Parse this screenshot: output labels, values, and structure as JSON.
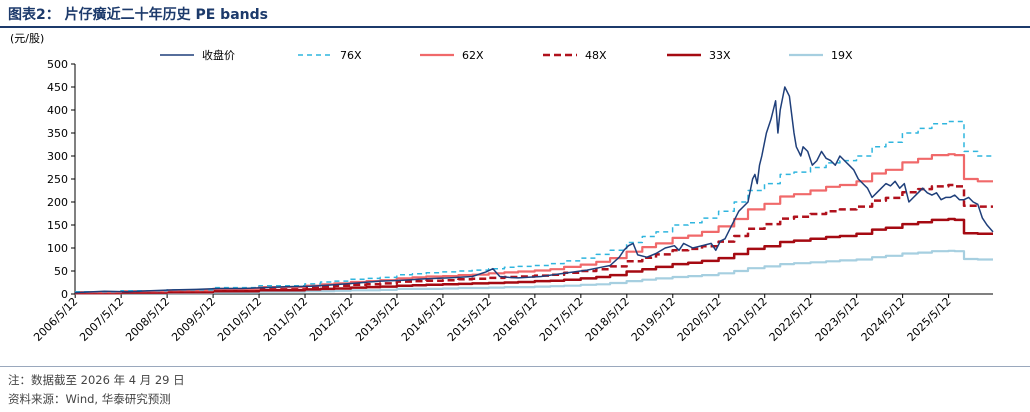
{
  "figure": {
    "title": "图表2：  片仔癀近二十年历史 PE bands",
    "unit_label": "(元/股)",
    "note": "注：数据截至 2026 年 4 月 29 日",
    "source": "资料来源：Wind, 华泰研究预测"
  },
  "colors": {
    "title": "#1c3a6b",
    "price": "#1f3f7a",
    "pe76": "#2fb5de",
    "pe62": "#f0696a",
    "pe48": "#b0111c",
    "pe33": "#a50a12",
    "pe19": "#a6cfe0"
  },
  "chart_data": {
    "type": "line",
    "title": "片仔癀近二十年历史 PE bands",
    "ylabel": "(元/股)",
    "ylim": [
      0,
      500
    ],
    "yticks": [
      0,
      50,
      100,
      150,
      200,
      250,
      300,
      350,
      400,
      450,
      500
    ],
    "xlim": [
      2006.36,
      2026.33
    ],
    "xticks": [
      "2006/5/12",
      "2007/5/12",
      "2008/5/12",
      "2009/5/12",
      "2010/5/12",
      "2011/5/12",
      "2012/5/12",
      "2013/5/12",
      "2014/5/12",
      "2015/5/12",
      "2016/5/12",
      "2017/5/12",
      "2018/5/12",
      "2019/5/12",
      "2020/5/12",
      "2021/5/12",
      "2022/5/12",
      "2023/5/12",
      "2024/5/12",
      "2025/5/12"
    ],
    "grid": false,
    "legend_position": "top",
    "series": [
      {
        "name": "收盘价",
        "key": "price",
        "style": "solid",
        "x": [
          2006.36,
          2007.0,
          2007.5,
          2008.0,
          2008.5,
          2009.0,
          2009.5,
          2010.0,
          2010.5,
          2011.0,
          2011.5,
          2012.0,
          2012.5,
          2013.0,
          2013.5,
          2014.0,
          2014.5,
          2015.0,
          2015.3,
          2015.45,
          2015.6,
          2015.8,
          2016.0,
          2016.5,
          2017.0,
          2017.5,
          2017.8,
          2018.0,
          2018.2,
          2018.3,
          2018.4,
          2018.5,
          2018.6,
          2018.8,
          2019.0,
          2019.2,
          2019.4,
          2019.5,
          2019.6,
          2019.8,
          2020.0,
          2020.2,
          2020.3,
          2020.4,
          2020.5,
          2020.6,
          2020.7,
          2020.8,
          2020.9,
          2021.0,
          2021.1,
          2021.15,
          2021.2,
          2021.25,
          2021.3,
          2021.4,
          2021.5,
          2021.55,
          2021.6,
          2021.65,
          2021.7,
          2021.8,
          2021.9,
          2022.0,
          2022.05,
          2022.1,
          2022.15,
          2022.2,
          2022.3,
          2022.4,
          2022.5,
          2022.6,
          2022.7,
          2022.8,
          2022.9,
          2023.0,
          2023.1,
          2023.2,
          2023.3,
          2023.4,
          2023.5,
          2023.6,
          2023.7,
          2023.8,
          2023.9,
          2024.0,
          2024.1,
          2024.2,
          2024.3,
          2024.4,
          2024.5,
          2024.6,
          2024.7,
          2024.8,
          2024.9,
          2025.0,
          2025.1,
          2025.2,
          2025.3,
          2025.4,
          2025.5,
          2025.6,
          2025.7,
          2025.8,
          2025.9,
          2026.0,
          2026.1,
          2026.2,
          2026.33
        ],
        "y": [
          3,
          6,
          5,
          7,
          9,
          10,
          12,
          12,
          14,
          16,
          17,
          20,
          24,
          28,
          30,
          33,
          35,
          38,
          48,
          55,
          38,
          36,
          35,
          38,
          45,
          52,
          58,
          62,
          80,
          95,
          105,
          110,
          85,
          80,
          88,
          100,
          105,
          95,
          110,
          100,
          105,
          110,
          95,
          115,
          120,
          140,
          160,
          180,
          190,
          200,
          250,
          260,
          240,
          280,
          300,
          350,
          380,
          400,
          420,
          350,
          400,
          450,
          430,
          350,
          320,
          310,
          300,
          320,
          310,
          280,
          290,
          310,
          295,
          290,
          280,
          300,
          290,
          280,
          270,
          250,
          240,
          230,
          210,
          220,
          230,
          240,
          235,
          245,
          230,
          240,
          200,
          210,
          220,
          230,
          220,
          215,
          220,
          205,
          210,
          210,
          215,
          205,
          205,
          210,
          200,
          195,
          165,
          150,
          135
        ]
      },
      {
        "name": "76X",
        "key": "pe76",
        "style": "dashed",
        "x": [
          2006.36,
          2007.36,
          2008.36,
          2009.36,
          2010.36,
          2011.36,
          2011.7,
          2012.0,
          2012.36,
          2012.7,
          2013.0,
          2013.36,
          2013.7,
          2014.0,
          2014.36,
          2014.7,
          2015.0,
          2015.36,
          2015.7,
          2016.0,
          2016.36,
          2016.7,
          2017.0,
          2017.36,
          2017.7,
          2018.0,
          2018.36,
          2018.7,
          2019.0,
          2019.36,
          2019.7,
          2020.0,
          2020.36,
          2020.7,
          2021.0,
          2021.36,
          2021.7,
          2022.0,
          2022.36,
          2022.7,
          2023.0,
          2023.36,
          2023.7,
          2024.0,
          2024.36,
          2024.7,
          2025.0,
          2025.36,
          2025.5,
          2025.7,
          2026.0,
          2026.33
        ],
        "y": [
          5,
          7,
          9,
          14,
          18,
          22,
          26,
          28,
          32,
          34,
          36,
          42,
          44,
          46,
          48,
          50,
          52,
          55,
          58,
          60,
          62,
          66,
          72,
          78,
          86,
          95,
          112,
          125,
          135,
          150,
          155,
          165,
          180,
          200,
          225,
          240,
          260,
          265,
          275,
          285,
          290,
          300,
          320,
          330,
          350,
          360,
          370,
          375,
          375,
          310,
          300,
          300
        ]
      },
      {
        "name": "62X",
        "key": "pe62",
        "style": "solid",
        "x": [
          2006.36,
          2007.36,
          2008.36,
          2009.36,
          2010.36,
          2011.36,
          2011.7,
          2012.0,
          2012.36,
          2012.7,
          2013.0,
          2013.36,
          2013.7,
          2014.0,
          2014.36,
          2014.7,
          2015.0,
          2015.36,
          2015.7,
          2016.0,
          2016.36,
          2016.7,
          2017.0,
          2017.36,
          2017.7,
          2018.0,
          2018.36,
          2018.7,
          2019.0,
          2019.36,
          2019.7,
          2020.0,
          2020.36,
          2020.7,
          2021.0,
          2021.36,
          2021.7,
          2022.0,
          2022.36,
          2022.7,
          2023.0,
          2023.36,
          2023.7,
          2024.0,
          2024.36,
          2024.7,
          2025.0,
          2025.36,
          2025.5,
          2025.7,
          2026.0,
          2026.33
        ],
        "y": [
          4,
          6,
          8,
          11,
          15,
          18,
          21,
          23,
          26,
          28,
          30,
          34,
          36,
          38,
          39,
          41,
          42,
          45,
          47,
          49,
          51,
          54,
          59,
          64,
          70,
          78,
          92,
          102,
          110,
          122,
          127,
          135,
          147,
          163,
          184,
          196,
          212,
          217,
          225,
          233,
          237,
          245,
          262,
          270,
          286,
          294,
          302,
          304,
          302,
          250,
          245,
          245
        ]
      },
      {
        "name": "48X",
        "key": "pe48",
        "style": "dashed",
        "x": [
          2006.36,
          2007.36,
          2008.36,
          2009.36,
          2010.36,
          2011.36,
          2011.7,
          2012.0,
          2012.36,
          2012.7,
          2013.0,
          2013.36,
          2013.7,
          2014.0,
          2014.36,
          2014.7,
          2015.0,
          2015.36,
          2015.7,
          2016.0,
          2016.36,
          2016.7,
          2017.0,
          2017.36,
          2017.7,
          2018.0,
          2018.36,
          2018.7,
          2019.0,
          2019.36,
          2019.7,
          2020.0,
          2020.36,
          2020.7,
          2021.0,
          2021.36,
          2021.7,
          2022.0,
          2022.36,
          2022.7,
          2023.0,
          2023.36,
          2023.7,
          2024.0,
          2024.36,
          2024.7,
          2025.0,
          2025.36,
          2025.5,
          2025.7,
          2026.0,
          2026.33
        ],
        "y": [
          3,
          5,
          6,
          9,
          11,
          14,
          16,
          18,
          20,
          21,
          23,
          27,
          28,
          29,
          30,
          32,
          33,
          35,
          37,
          38,
          40,
          42,
          46,
          50,
          54,
          60,
          71,
          79,
          86,
          95,
          98,
          104,
          114,
          126,
          142,
          152,
          164,
          168,
          174,
          180,
          184,
          190,
          203,
          209,
          221,
          228,
          234,
          237,
          234,
          192,
          190,
          190
        ]
      },
      {
        "name": "33X",
        "key": "pe33",
        "style": "solid",
        "x": [
          2006.36,
          2007.36,
          2008.36,
          2009.36,
          2010.36,
          2011.36,
          2011.7,
          2012.0,
          2012.36,
          2012.7,
          2013.0,
          2013.36,
          2013.7,
          2014.0,
          2014.36,
          2014.7,
          2015.0,
          2015.36,
          2015.7,
          2016.0,
          2016.36,
          2016.7,
          2017.0,
          2017.36,
          2017.7,
          2018.0,
          2018.36,
          2018.7,
          2019.0,
          2019.36,
          2019.7,
          2020.0,
          2020.36,
          2020.7,
          2021.0,
          2021.36,
          2021.7,
          2022.0,
          2022.36,
          2022.7,
          2023.0,
          2023.36,
          2023.7,
          2024.0,
          2024.36,
          2024.7,
          2025.0,
          2025.36,
          2025.5,
          2025.7,
          2026.0,
          2026.33
        ],
        "y": [
          2,
          3,
          4,
          6,
          8,
          10,
          11,
          12,
          14,
          15,
          16,
          18,
          19,
          20,
          21,
          22,
          23,
          24,
          25,
          26,
          28,
          29,
          31,
          34,
          37,
          41,
          49,
          54,
          59,
          65,
          68,
          72,
          78,
          87,
          98,
          104,
          113,
          116,
          120,
          124,
          126,
          131,
          140,
          144,
          152,
          156,
          161,
          163,
          161,
          132,
          131,
          131
        ]
      },
      {
        "name": "19X",
        "key": "pe19",
        "style": "solid",
        "x": [
          2006.36,
          2007.36,
          2008.36,
          2009.36,
          2010.36,
          2011.36,
          2011.7,
          2012.0,
          2012.36,
          2012.7,
          2013.0,
          2013.36,
          2013.7,
          2014.0,
          2014.36,
          2014.7,
          2015.0,
          2015.36,
          2015.7,
          2016.0,
          2016.36,
          2016.7,
          2017.0,
          2017.36,
          2017.7,
          2018.0,
          2018.36,
          2018.7,
          2019.0,
          2019.36,
          2019.7,
          2020.0,
          2020.36,
          2020.7,
          2021.0,
          2021.36,
          2021.7,
          2022.0,
          2022.36,
          2022.7,
          2023.0,
          2023.36,
          2023.7,
          2024.0,
          2024.36,
          2024.7,
          2025.0,
          2025.36,
          2025.5,
          2025.7,
          2026.0,
          2026.33
        ],
        "y": [
          1,
          2,
          2,
          3,
          5,
          6,
          6,
          7,
          8,
          8,
          9,
          11,
          11,
          11,
          12,
          13,
          13,
          14,
          15,
          15,
          16,
          17,
          18,
          20,
          21,
          24,
          28,
          31,
          34,
          37,
          39,
          41,
          45,
          50,
          56,
          60,
          65,
          67,
          69,
          71,
          73,
          75,
          80,
          83,
          88,
          90,
          93,
          94,
          93,
          76,
          75,
          75
        ]
      }
    ]
  }
}
